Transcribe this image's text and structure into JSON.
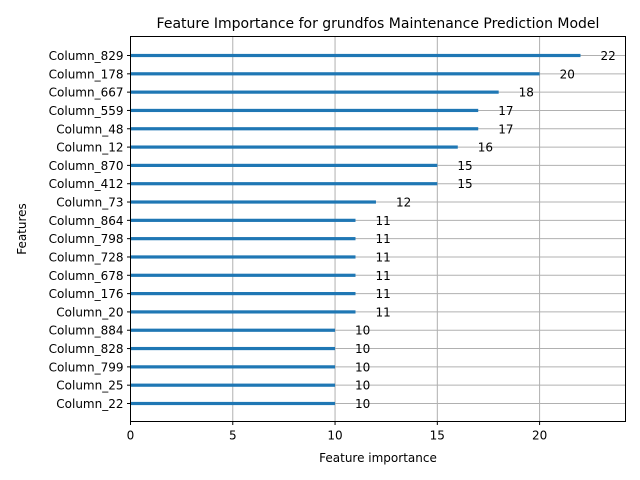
{
  "chart_data": {
    "type": "bar",
    "orientation": "horizontal",
    "title": "Feature Importance for grundfos Maintenance Prediction Model",
    "xlabel": "Feature importance",
    "ylabel": "Features",
    "xlim": [
      0,
      24.2
    ],
    "xticks": [
      "0",
      "5",
      "10",
      "15",
      "20"
    ],
    "grid": true,
    "bar_color": "#1f77b4",
    "categories": [
      "Column_829",
      "Column_178",
      "Column_667",
      "Column_559",
      "Column_48",
      "Column_12",
      "Column_870",
      "Column_412",
      "Column_73",
      "Column_864",
      "Column_798",
      "Column_728",
      "Column_678",
      "Column_176",
      "Column_20",
      "Column_884",
      "Column_828",
      "Column_799",
      "Column_25",
      "Column_22"
    ],
    "values": [
      22,
      20,
      18,
      17,
      17,
      16,
      15,
      15,
      12,
      11,
      11,
      11,
      11,
      11,
      11,
      10,
      10,
      10,
      10,
      10
    ]
  }
}
